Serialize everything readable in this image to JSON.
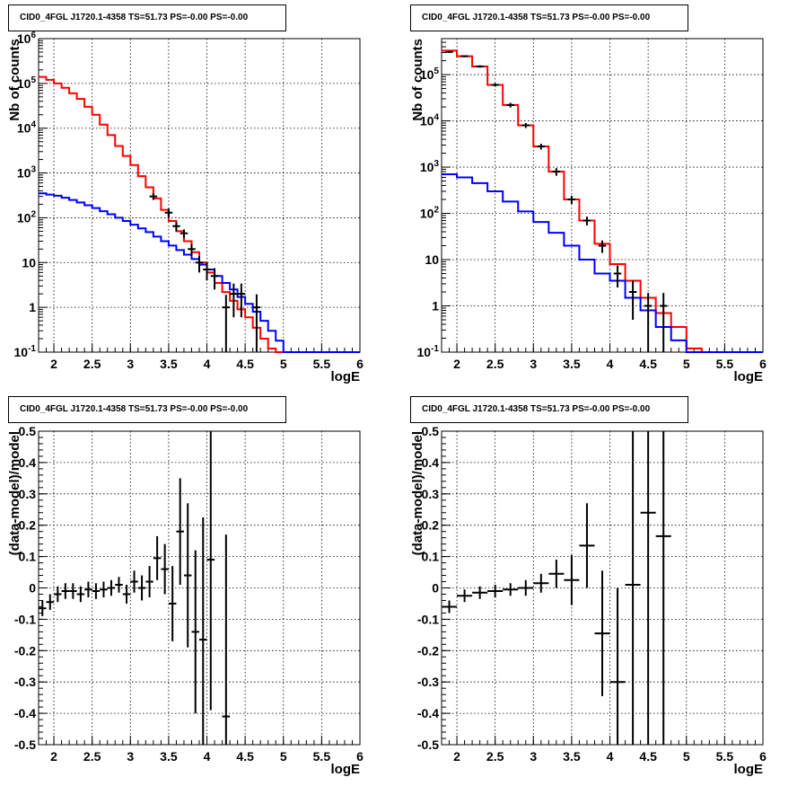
{
  "chart_data": [
    {
      "type": "line",
      "title": "CID0_4FGL J1720.1-4358 TS=51.73 PS=-0.00 PS=-0.00",
      "xlabel": "logE",
      "ylabel": "Nb of counts",
      "xlim": [
        1.8,
        6.0
      ],
      "ylim": [
        0.1,
        1000000
      ],
      "yscale": "log",
      "grid": true,
      "x_ticks": [
        "2",
        "2.5",
        "3",
        "3.5",
        "4",
        "4.5",
        "5",
        "5.5",
        "6"
      ],
      "y_ticks": [
        "10^-1",
        "1",
        "10",
        "10^2",
        "10^3",
        "10^4",
        "10^5",
        "10^6"
      ],
      "bin_edges": [
        1.8,
        1.9,
        2.0,
        2.1,
        2.2,
        2.3,
        2.4,
        2.5,
        2.6,
        2.7,
        2.8,
        2.9,
        3.0,
        3.1,
        3.2,
        3.3,
        3.4,
        3.5,
        3.6,
        3.7,
        3.8,
        3.9,
        4.0,
        4.1,
        4.2,
        4.3,
        4.4,
        4.5,
        4.6,
        4.7,
        4.8,
        4.9,
        5.0,
        5.1,
        5.2,
        5.3,
        5.4,
        5.5,
        5.6,
        5.7,
        5.8,
        5.9,
        6.0
      ],
      "series": [
        {
          "color": "#ff0000",
          "values": [
            140000,
            120000,
            100000,
            80000,
            60000,
            45000,
            30000,
            20000,
            12000,
            7000,
            4000,
            2400,
            1500,
            850,
            480,
            270,
            150,
            85,
            50,
            30,
            17,
            10,
            6,
            3.5,
            2.2,
            1.4,
            0.9,
            0.6,
            0.35,
            0.2,
            0.12,
            0.1,
            0.1,
            0.1,
            0.1,
            0.1,
            0.1,
            0.1,
            0.1,
            0.1,
            0.1,
            0.1
          ]
        },
        {
          "color": "#0000ff",
          "values": [
            350,
            330,
            310,
            280,
            250,
            220,
            190,
            165,
            140,
            120,
            100,
            85,
            70,
            58,
            48,
            38,
            30,
            24,
            19,
            15,
            12,
            9,
            7,
            5,
            3.5,
            2.5,
            1.7,
            1.2,
            0.8,
            0.5,
            0.3,
            0.18,
            0.1,
            0.1,
            0.1,
            0.1,
            0.1,
            0.1,
            0.1,
            0.1,
            0.1,
            0.1
          ]
        }
      ],
      "points": [
        {
          "x": 3.3,
          "y": 300,
          "err": 50
        },
        {
          "x": 3.5,
          "y": 130,
          "err": 30
        },
        {
          "x": 3.6,
          "y": 65,
          "err": 15
        },
        {
          "x": 3.7,
          "y": 45,
          "err": 10
        },
        {
          "x": 3.8,
          "y": 20,
          "err": 6
        },
        {
          "x": 3.9,
          "y": 10,
          "err": 4
        },
        {
          "x": 4.0,
          "y": 7,
          "err": 3
        },
        {
          "x": 4.1,
          "y": 5,
          "err": 2.5
        },
        {
          "x": 4.25,
          "y": 1.0,
          "err": 0.9
        },
        {
          "x": 4.35,
          "y": 2.0,
          "err": 1.4
        },
        {
          "x": 4.45,
          "y": 2.0,
          "err": 1.4
        },
        {
          "x": 4.65,
          "y": 1.0,
          "err": 0.95
        }
      ]
    },
    {
      "type": "line",
      "title": "CID0_4FGL J1720.1-4358 TS=51.73 PS=-0.00 PS=-0.00",
      "xlabel": "logE",
      "ylabel": "Nb of counts",
      "xlim": [
        1.8,
        6.0
      ],
      "ylim": [
        0.1,
        600000
      ],
      "yscale": "log",
      "grid": true,
      "x_ticks": [
        "2",
        "2.5",
        "3",
        "3.5",
        "4",
        "4.5",
        "5",
        "5.5",
        "6"
      ],
      "y_ticks": [
        "10^-1",
        "1",
        "10",
        "10^2",
        "10^3",
        "10^4",
        "10^5"
      ],
      "bin_edges": [
        1.8,
        2.0,
        2.2,
        2.4,
        2.6,
        2.8,
        3.0,
        3.2,
        3.4,
        3.6,
        3.8,
        4.0,
        4.2,
        4.4,
        4.6,
        4.8,
        5.0,
        5.2,
        5.4,
        5.6,
        5.8,
        6.0
      ],
      "series": [
        {
          "color": "#ff0000",
          "values": [
            330000,
            250000,
            150000,
            60000,
            22000,
            8000,
            2800,
            800,
            200,
            70,
            22,
            8,
            3.5,
            1.5,
            0.7,
            0.35,
            0.12,
            0.1,
            0.1,
            0.1,
            0.1
          ]
        },
        {
          "color": "#0000ff",
          "values": [
            700,
            600,
            450,
            300,
            180,
            110,
            65,
            38,
            20,
            10,
            5,
            3.5,
            1.5,
            0.8,
            0.35,
            0.18,
            0.1,
            0.1,
            0.1,
            0.1,
            0.1
          ]
        }
      ],
      "points": [
        {
          "x": 1.9,
          "y": 310000,
          "err": 15000
        },
        {
          "x": 2.1,
          "y": 250000,
          "err": 12000
        },
        {
          "x": 2.3,
          "y": 150000,
          "err": 9000
        },
        {
          "x": 2.5,
          "y": 60000,
          "err": 5000
        },
        {
          "x": 2.7,
          "y": 22000,
          "err": 2500
        },
        {
          "x": 2.9,
          "y": 8000,
          "err": 1000
        },
        {
          "x": 3.1,
          "y": 2800,
          "err": 400
        },
        {
          "x": 3.3,
          "y": 800,
          "err": 150
        },
        {
          "x": 3.5,
          "y": 200,
          "err": 40
        },
        {
          "x": 3.7,
          "y": 70,
          "err": 15
        },
        {
          "x": 3.9,
          "y": 20,
          "err": 6
        },
        {
          "x": 4.1,
          "y": 5,
          "err": 2.5
        },
        {
          "x": 4.3,
          "y": 2,
          "err": 1.5
        },
        {
          "x": 4.5,
          "y": 1,
          "err": 0.9
        },
        {
          "x": 4.7,
          "y": 1,
          "err": 0.9
        }
      ]
    },
    {
      "type": "scatter",
      "title": "CID0_4FGL J1720.1-4358 TS=51.73 PS=-0.00 PS=-0.00",
      "xlabel": "logE",
      "ylabel": "(data-model)/model",
      "xlim": [
        1.8,
        6.0
      ],
      "ylim": [
        -0.5,
        0.5
      ],
      "grid": true,
      "x_ticks": [
        "2",
        "2.5",
        "3",
        "3.5",
        "4",
        "4.5",
        "5",
        "5.5",
        "6"
      ],
      "y_ticks": [
        "-0.5",
        "-0.4",
        "-0.3",
        "-0.2",
        "-0.1",
        "0",
        "0.1",
        "0.2",
        "0.3",
        "0.4",
        "0.5"
      ],
      "xhalf": 0.05,
      "points": [
        {
          "x": 1.85,
          "y": -0.065,
          "err": 0.025
        },
        {
          "x": 1.95,
          "y": -0.045,
          "err": 0.025
        },
        {
          "x": 2.05,
          "y": -0.02,
          "err": 0.025
        },
        {
          "x": 2.15,
          "y": -0.01,
          "err": 0.025
        },
        {
          "x": 2.25,
          "y": -0.01,
          "err": 0.025
        },
        {
          "x": 2.35,
          "y": -0.02,
          "err": 0.025
        },
        {
          "x": 2.45,
          "y": -0.005,
          "err": 0.025
        },
        {
          "x": 2.55,
          "y": -0.01,
          "err": 0.025
        },
        {
          "x": 2.65,
          "y": -0.005,
          "err": 0.025
        },
        {
          "x": 2.75,
          "y": 0.0,
          "err": 0.025
        },
        {
          "x": 2.85,
          "y": 0.01,
          "err": 0.025
        },
        {
          "x": 2.95,
          "y": -0.02,
          "err": 0.03
        },
        {
          "x": 3.05,
          "y": 0.02,
          "err": 0.035
        },
        {
          "x": 3.15,
          "y": 0.0,
          "err": 0.04
        },
        {
          "x": 3.25,
          "y": 0.02,
          "err": 0.05
        },
        {
          "x": 3.35,
          "y": 0.095,
          "err": 0.07
        },
        {
          "x": 3.45,
          "y": 0.06,
          "err": 0.08
        },
        {
          "x": 3.55,
          "y": -0.05,
          "err": 0.12
        },
        {
          "x": 3.65,
          "y": 0.18,
          "err": 0.17
        },
        {
          "x": 3.75,
          "y": 0.04,
          "err": 0.23
        },
        {
          "x": 3.85,
          "y": -0.14,
          "err": 0.26
        },
        {
          "x": 3.95,
          "y": -0.165,
          "err": 0.39
        },
        {
          "x": 4.05,
          "y": 0.09,
          "err": 0.48
        },
        {
          "x": 4.25,
          "y": -0.41,
          "err": 0.58
        }
      ]
    },
    {
      "type": "scatter",
      "title": "CID0_4FGL J1720.1-4358 TS=51.73 PS=-0.00 PS=-0.00",
      "xlabel": "logE",
      "ylabel": "(data-model)/model",
      "xlim": [
        1.8,
        6.0
      ],
      "ylim": [
        -0.5,
        0.5
      ],
      "grid": true,
      "x_ticks": [
        "2",
        "2.5",
        "3",
        "3.5",
        "4",
        "4.5",
        "5",
        "5.5",
        "6"
      ],
      "y_ticks": [
        "-0.5",
        "-0.4",
        "-0.3",
        "-0.2",
        "-0.1",
        "0",
        "0.1",
        "0.2",
        "0.3",
        "0.4",
        "0.5"
      ],
      "xhalf": 0.1,
      "points": [
        {
          "x": 1.9,
          "y": -0.06,
          "err": 0.02
        },
        {
          "x": 2.1,
          "y": -0.025,
          "err": 0.02
        },
        {
          "x": 2.3,
          "y": -0.015,
          "err": 0.02
        },
        {
          "x": 2.5,
          "y": -0.01,
          "err": 0.02
        },
        {
          "x": 2.7,
          "y": -0.005,
          "err": 0.02
        },
        {
          "x": 2.9,
          "y": 0.0,
          "err": 0.025
        },
        {
          "x": 3.1,
          "y": 0.015,
          "err": 0.03
        },
        {
          "x": 3.3,
          "y": 0.045,
          "err": 0.045
        },
        {
          "x": 3.5,
          "y": 0.025,
          "err": 0.08
        },
        {
          "x": 3.7,
          "y": 0.135,
          "err": 0.135
        },
        {
          "x": 3.9,
          "y": -0.145,
          "err": 0.2
        },
        {
          "x": 4.1,
          "y": -0.3,
          "err": 0.3
        },
        {
          "x": 4.3,
          "y": 0.01,
          "err": 0.9
        },
        {
          "x": 4.5,
          "y": 0.24,
          "err": 1.0
        },
        {
          "x": 4.7,
          "y": 0.165,
          "err": 1.0
        }
      ]
    }
  ]
}
